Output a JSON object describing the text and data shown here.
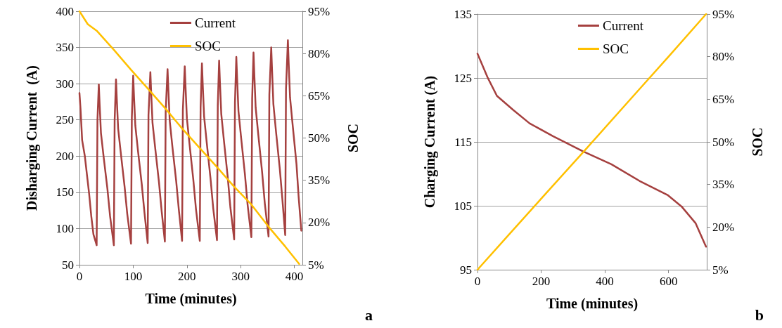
{
  "chart_data": [
    {
      "type": "line",
      "xlabel": "Time (minutes)",
      "ylabel": "Disharging Current  (A)",
      "y2label": "SOC",
      "annotations": [
        "a"
      ],
      "xlim": [
        0,
        415
      ],
      "xticks": [
        0,
        100,
        200,
        300,
        400
      ],
      "ylim": [
        50,
        400
      ],
      "yticks": [
        50,
        100,
        150,
        200,
        250,
        300,
        350,
        400
      ],
      "y2lim": [
        5,
        95
      ],
      "y2ticks": [
        {
          "value": 5,
          "label": "5%"
        },
        {
          "value": 20,
          "label": "20%"
        },
        {
          "value": 35,
          "label": "35%"
        },
        {
          "value": 50,
          "label": "50%"
        },
        {
          "value": 65,
          "label": "65%"
        },
        {
          "value": 80,
          "label": "80%"
        },
        {
          "value": 95,
          "label": "95%"
        }
      ],
      "grid": "y",
      "legend": "top right",
      "marker": "none",
      "line_style": "solid",
      "series": [
        {
          "name": "Current",
          "color": "#a5403f",
          "x": [
            0,
            2,
            5,
            10,
            18,
            22,
            26,
            32,
            33.5,
            36,
            37.5,
            40,
            45,
            52,
            57,
            64,
            65.5,
            68,
            69.5,
            72,
            77,
            84,
            89,
            96,
            97.5,
            100,
            101.5,
            104,
            109,
            116,
            121,
            127,
            128.5,
            132,
            133.5,
            136,
            141,
            148,
            153,
            159,
            160.5,
            164,
            165.5,
            168,
            173,
            180,
            185,
            191,
            192.5,
            196,
            197.5,
            200,
            205,
            212,
            217,
            224,
            225.5,
            228,
            229.5,
            232,
            237,
            244,
            249,
            256,
            257.5,
            260,
            261.5,
            264,
            269,
            276,
            281,
            288,
            289.5,
            292,
            293.5,
            296,
            301,
            308,
            313,
            320,
            321.5,
            324,
            325.5,
            328,
            333,
            340,
            345,
            352,
            353.5,
            357,
            358.5,
            361,
            366,
            373,
            378,
            383,
            384.5,
            388,
            389.5,
            392,
            397,
            404,
            408,
            413
          ],
          "values": [
            287,
            265,
            222,
            200,
            148,
            117,
            92,
            77,
            250,
            299,
            272,
            232,
            199,
            155,
            117,
            77,
            249,
            306,
            279,
            238,
            204,
            158,
            120,
            79,
            253,
            311,
            283,
            242,
            207,
            161,
            122,
            80,
            257,
            316,
            288,
            246,
            211,
            164,
            124,
            82,
            261,
            320,
            292,
            249,
            213,
            166,
            126,
            83,
            264,
            324,
            295,
            252,
            216,
            167,
            126,
            83,
            267,
            328,
            299,
            255,
            218,
            169,
            128,
            84,
            270,
            332,
            302,
            258,
            221,
            171,
            129,
            85,
            274,
            337,
            307,
            262,
            225,
            175,
            133,
            88,
            279,
            343,
            313,
            267,
            229,
            178,
            135,
            89,
            285,
            350,
            319,
            272,
            233,
            182,
            138,
            91,
            293,
            360,
            328,
            281,
            242,
            189,
            144,
            97
          ]
        },
        {
          "name": "SOC",
          "color": "#ffc000",
          "axis": "y2",
          "x": [
            0,
            15.5,
            32,
            64,
            96,
            127,
            159,
            191,
            224,
            256,
            288,
            320,
            352,
            383,
            409
          ],
          "values": [
            95,
            90.4,
            88.1,
            81.3,
            74.2,
            67.6,
            60.7,
            53.4,
            46.4,
            39.7,
            32.7,
            26.4,
            18.5,
            11.5,
            5.3
          ]
        }
      ]
    },
    {
      "type": "line",
      "xlabel": "Time (minutes)",
      "ylabel": "Charging Current (A)",
      "y2label": "SOC",
      "annotations": [
        "b"
      ],
      "xlim": [
        0,
        720
      ],
      "xticks": [
        0,
        200,
        400,
        600
      ],
      "ylim": [
        95,
        135
      ],
      "yticks": [
        95,
        105,
        115,
        125,
        135
      ],
      "y2lim": [
        5,
        95
      ],
      "y2ticks": [
        {
          "value": 5,
          "label": "5%"
        },
        {
          "value": 20,
          "label": "20%"
        },
        {
          "value": 35,
          "label": "35%"
        },
        {
          "value": 50,
          "label": "50%"
        },
        {
          "value": 65,
          "label": "65%"
        },
        {
          "value": 80,
          "label": "80%"
        },
        {
          "value": 95,
          "label": "95%"
        }
      ],
      "grid": "y",
      "legend": "top right",
      "marker": "none",
      "line_style": "solid",
      "series": [
        {
          "name": "Current",
          "color": "#a5403f",
          "x": [
            0,
            31.5,
            61,
            112,
            163.6,
            237,
            332,
            420.5,
            508.6,
            596.7,
            640.7,
            684.7,
            717.7
          ],
          "values": [
            128.8,
            125.1,
            122.2,
            120.0,
            117.9,
            115.9,
            113.5,
            111.5,
            108.9,
            106.7,
            104.9,
            102.3,
            98.6
          ]
        },
        {
          "name": "SOC",
          "color": "#ffc000",
          "axis": "y2",
          "x": [
            0,
            100,
            200,
            332,
            500,
            600,
            718
          ],
          "values": [
            5,
            17.5,
            30,
            46.4,
            67.5,
            80,
            95
          ]
        }
      ]
    }
  ]
}
